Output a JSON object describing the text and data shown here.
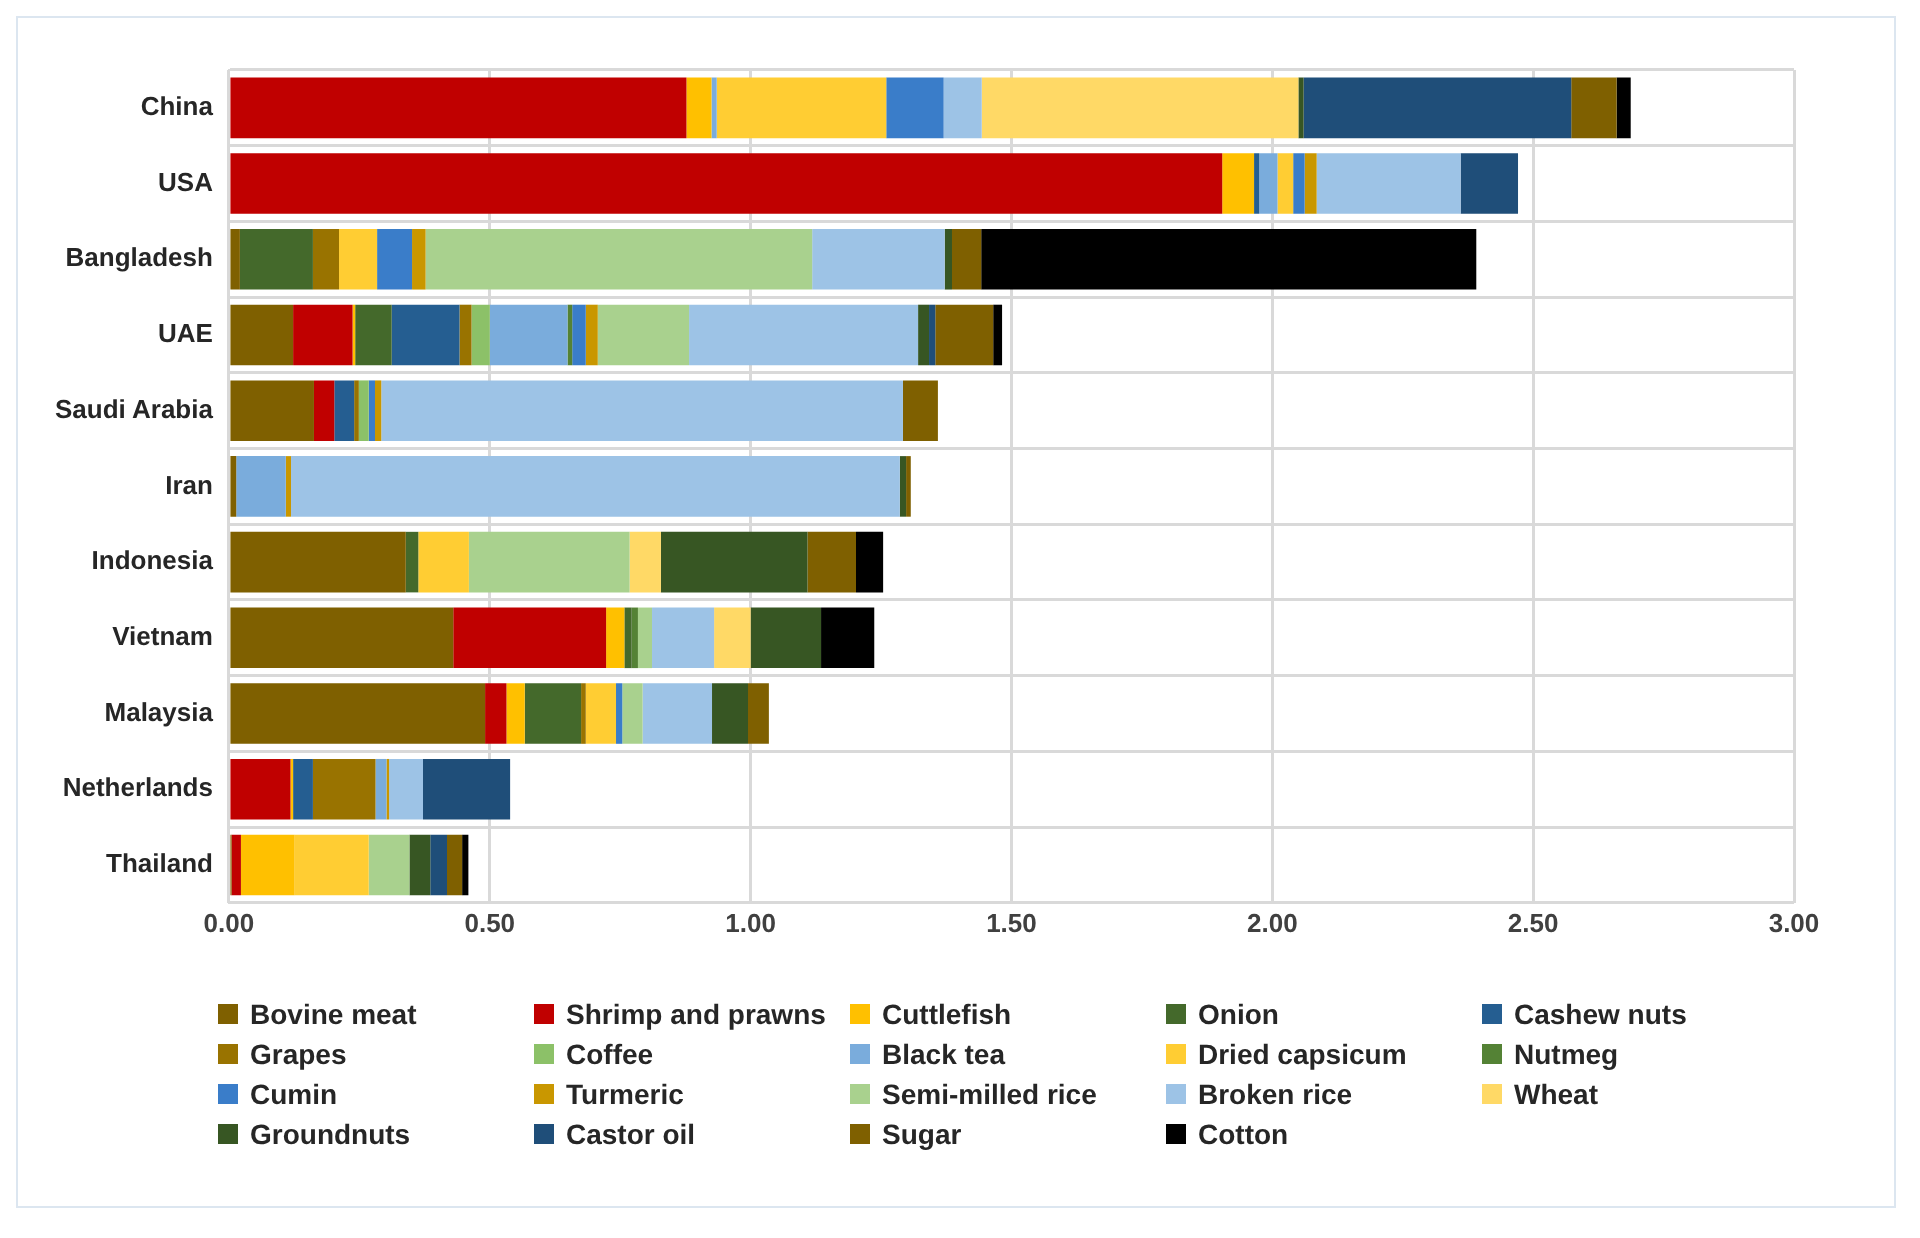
{
  "chart_data": {
    "type": "bar",
    "orientation": "horizontal",
    "stacked": true,
    "grid": "x",
    "legend": "bottom",
    "categories": [
      "China",
      "USA",
      "Bangladesh",
      "UAE",
      "Saudi Arabia",
      "Iran",
      "Indonesia",
      "Vietnam",
      "Malaysia",
      "Netherlands",
      "Thailand"
    ],
    "xlim": [
      0,
      3
    ],
    "xticks": [
      {
        "value": 0,
        "label": "0.00"
      },
      {
        "value": 0.5,
        "label": "0.50"
      },
      {
        "value": 1,
        "label": "1.00"
      },
      {
        "value": 1.5,
        "label": "1.50"
      },
      {
        "value": 2,
        "label": "2.00"
      },
      {
        "value": 2.5,
        "label": "2.50"
      },
      {
        "value": 3,
        "label": "3.00"
      }
    ],
    "series": [
      {
        "name": "Bovine meat",
        "color": "#7f6000",
        "values": [
          0,
          0,
          0.021,
          0.123,
          0.163,
          0.014,
          0.339,
          0.43,
          0.491,
          0,
          0.005
        ]
      },
      {
        "name": "Shrimp and prawns",
        "color": "#c00000",
        "values": [
          0.877,
          1.904,
          0,
          0.114,
          0.039,
          0,
          0,
          0.293,
          0.041,
          0.118,
          0.018
        ]
      },
      {
        "name": "Cuttlefish",
        "color": "#ffc000",
        "values": [
          0.048,
          0.061,
          0,
          0.005,
          0,
          0,
          0,
          0.035,
          0.035,
          0.005,
          0.103
        ]
      },
      {
        "name": "Onion",
        "color": "#44692b",
        "values": [
          0,
          0,
          0.14,
          0.07,
          0,
          0,
          0.024,
          0.014,
          0.108,
          0,
          0
        ]
      },
      {
        "name": "Cashew nuts",
        "color": "#255e91",
        "values": [
          0,
          0.01,
          0,
          0.13,
          0.038,
          0,
          0,
          0,
          0,
          0.038,
          0
        ]
      },
      {
        "name": "Grapes",
        "color": "#997300",
        "values": [
          0,
          0,
          0.05,
          0.023,
          0.009,
          0,
          0,
          0,
          0.009,
          0.12,
          0
        ]
      },
      {
        "name": "Coffee",
        "color": "#8cc168",
        "values": [
          0,
          0,
          0,
          0.035,
          0.019,
          0,
          0,
          0,
          0,
          0,
          0
        ]
      },
      {
        "name": "Black tea",
        "color": "#7aacdc",
        "values": [
          0.01,
          0.035,
          0,
          0.149,
          0,
          0.095,
          0,
          0,
          0,
          0.021,
          0
        ]
      },
      {
        "name": "Dried capsicum",
        "color": "#ffcd33",
        "values": [
          0.325,
          0.03,
          0.073,
          0,
          0,
          0,
          0.097,
          0,
          0.058,
          0,
          0.142
        ]
      },
      {
        "name": "Nutmeg",
        "color": "#548235",
        "values": [
          0,
          0,
          0,
          0.009,
          0,
          0,
          0,
          0.012,
          0,
          0,
          0
        ]
      },
      {
        "name": "Cumin",
        "color": "#3a7dc9",
        "values": [
          0.11,
          0.022,
          0.067,
          0.026,
          0.012,
          0,
          0,
          0,
          0.012,
          0,
          0
        ]
      },
      {
        "name": "Turmeric",
        "color": "#c99700",
        "values": [
          0,
          0.023,
          0.026,
          0.023,
          0.012,
          0.01,
          0,
          0,
          0,
          0.005,
          0
        ]
      },
      {
        "name": "Semi-milled rice",
        "color": "#a9d18e",
        "values": [
          0,
          0,
          0.741,
          0.175,
          0,
          0,
          0.308,
          0.027,
          0.039,
          0,
          0.078
        ]
      },
      {
        "name": "Broken rice",
        "color": "#9dc3e6",
        "values": [
          0.073,
          0.276,
          0.254,
          0.439,
          1.0,
          1.167,
          0,
          0.119,
          0.133,
          0.065,
          0
        ]
      },
      {
        "name": "Wheat",
        "color": "#ffd966",
        "values": [
          0.607,
          0,
          0,
          0,
          0,
          0,
          0.06,
          0.07,
          0,
          0,
          0
        ]
      },
      {
        "name": "Groundnuts",
        "color": "#375623",
        "values": [
          0.01,
          0,
          0.014,
          0.021,
          0,
          0.012,
          0.281,
          0.135,
          0.069,
          0,
          0.04
        ]
      },
      {
        "name": "Castor oil",
        "color": "#1f4e79",
        "values": [
          0.513,
          0.11,
          0,
          0.012,
          0,
          0,
          0,
          0,
          0,
          0.167,
          0.032
        ]
      },
      {
        "name": "Sugar",
        "color": "#7f6000",
        "values": [
          0.087,
          0,
          0.056,
          0.111,
          0.067,
          0.009,
          0.093,
          0,
          0.04,
          0,
          0.029
        ]
      },
      {
        "name": "Cotton",
        "color": "#000000",
        "values": [
          0.027,
          0,
          0.949,
          0.017,
          0,
          0,
          0.052,
          0.102,
          0,
          0,
          0.012
        ]
      }
    ]
  }
}
